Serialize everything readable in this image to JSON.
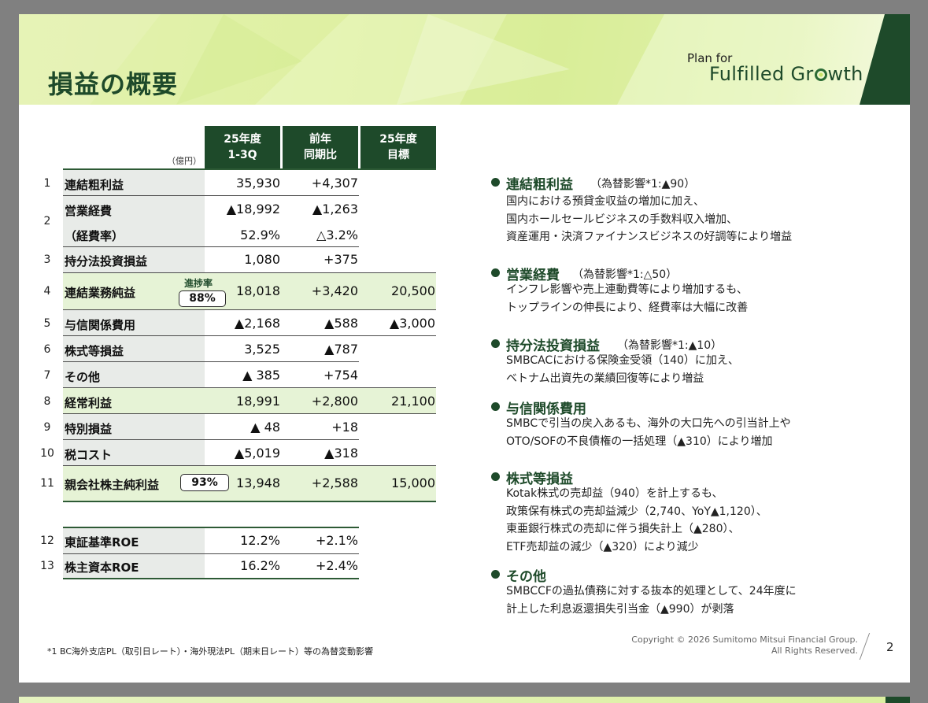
{
  "slide": {
    "title": "損益の概要",
    "logo_top": "Plan for",
    "logo_main_a": "Fulfilled Gr",
    "logo_main_b": "wth",
    "page_number": "2"
  },
  "table": {
    "unit": "（億円）",
    "headers": [
      {
        "line1": "25年度",
        "line2": "1-3Q"
      },
      {
        "line1": "前年",
        "line2": "同期比"
      },
      {
        "line1": "25年度",
        "line2": "目標"
      }
    ],
    "rows": [
      {
        "num": "1",
        "label": "連結粗利益",
        "v1": "35,930",
        "v2": "+4,307",
        "v3": ""
      },
      {
        "num": "2",
        "label": "営業経費",
        "v1": "▲18,992",
        "v2": "▲1,263",
        "v3": ""
      },
      {
        "num": "",
        "label": "（経費率）",
        "v1": "52.9%",
        "v2": "△3.2%",
        "v3": ""
      },
      {
        "num": "3",
        "label": "持分法投資損益",
        "v1": "1,080",
        "v2": "+375",
        "v3": ""
      },
      {
        "num": "4",
        "label": "連結業務純益",
        "v1": "18,018",
        "v2": "+3,420",
        "v3": "20,500"
      },
      {
        "num": "5",
        "label": "与信関係費用",
        "v1": "▲2,168",
        "v2": "▲588",
        "v3": "▲3,000"
      },
      {
        "num": "6",
        "label": "株式等損益",
        "v1": "3,525",
        "v2": "▲787",
        "v3": ""
      },
      {
        "num": "7",
        "label": "その他",
        "v1": "▲ 385",
        "v2": "+754",
        "v3": ""
      },
      {
        "num": "8",
        "label": "経常利益",
        "v1": "18,991",
        "v2": "+2,800",
        "v3": "21,100"
      },
      {
        "num": "9",
        "label": "特別損益",
        "v1": "▲ 48",
        "v2": "+18",
        "v3": ""
      },
      {
        "num": "10",
        "label": "税コスト",
        "v1": "▲5,019",
        "v2": "▲318",
        "v3": ""
      },
      {
        "num": "11",
        "label": "親会社株主純利益",
        "v1": "13,948",
        "v2": "+2,588",
        "v3": "15,000"
      }
    ],
    "progress_label": "進捗率",
    "progress_row4": "88%",
    "progress_row11": "93%",
    "roe_rows": [
      {
        "num": "12",
        "label": "東証基準ROE",
        "v1": "12.2%",
        "v2": "+2.1%"
      },
      {
        "num": "13",
        "label": "株主資本ROE",
        "v1": "16.2%",
        "v2": "+2.4%"
      }
    ]
  },
  "sections": [
    {
      "title": "連結粗利益",
      "note": "（為替影響*1:▲90）",
      "lines": [
        "国内における預貸金収益の増加に加え、",
        "国内ホールセールビジネスの手数料収入増加、",
        "資産運用・決済ファイナンスビジネスの好調等により増益"
      ]
    },
    {
      "title": "営業経費",
      "note": "（為替影響*1:△50）",
      "lines": [
        "インフレ影響や売上連動費等により増加するも、",
        "トップラインの伸長により、経費率は大幅に改善"
      ]
    },
    {
      "title": "持分法投資損益",
      "note": "（為替影響*1:▲10）",
      "lines": [
        "SMBCACにおける保険金受領（140）に加え、",
        "ベトナム出資先の業績回復等により増益"
      ]
    },
    {
      "title": "与信関係費用",
      "note": "",
      "lines": [
        "SMBCで引当の戻入あるも、海外の大口先への引当計上や",
        "OTO/SOFの不良債権の一括処理（▲310）により増加"
      ]
    },
    {
      "title": "株式等損益",
      "note": "",
      "lines": [
        "Kotak株式の売却益（940）を計上するも、",
        "政策保有株式の売却益減少（2,740、YoY▲1,120）、",
        "東亜銀行株式の売却に伴う損失計上（▲280）、",
        "ETF売却益の減少（▲320）により減少"
      ]
    },
    {
      "title": "その他",
      "note": "",
      "lines": [
        "SMBCCFの過払債務に対する抜本的処理として、24年度に",
        "計上した利息返還損失引当金（▲990）が剥落"
      ]
    }
  ],
  "footer": {
    "footnote": "*1 BC海外支店PL（取引日レート）・海外現法PL（期末日レート）等の為替変動影響",
    "copyright1": "Copyright © 2026 Sumitomo Mitsui Financial Group.",
    "copyright2": "All Rights Reserved."
  },
  "colors": {
    "brand_dark_green": "#1e4a2a",
    "highlight_green": "#e6f3d6",
    "label_gray": "#e8ebe8"
  }
}
